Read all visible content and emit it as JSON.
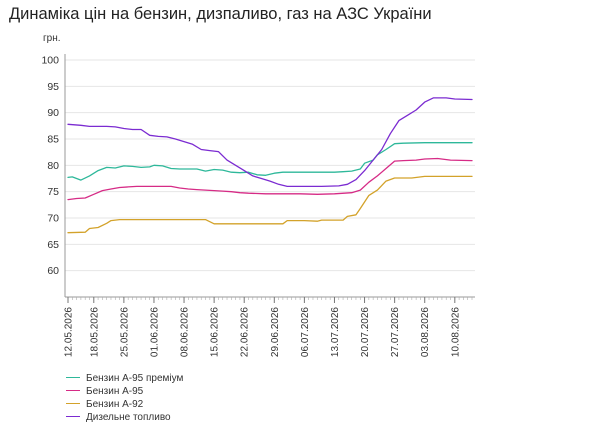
{
  "chart_data": {
    "type": "line",
    "title": "Динаміка цін на бензин, дизпаливо, газ на АЗС України",
    "ylabel": "грн.",
    "xlabel": "",
    "ylim": [
      55,
      100
    ],
    "yticks": [
      60,
      65,
      70,
      75,
      80,
      85,
      90,
      95,
      100
    ],
    "grid": "horizontal",
    "legend_position": "bottom-left",
    "x_tick_labels": [
      "12.05.2026",
      "18.05.2026",
      "25.05.2026",
      "01.06.2026",
      "08.06.2026",
      "15.06.2026",
      "22.06.2026",
      "29.06.2026",
      "06.07.2026",
      "13.07.2026",
      "20.07.2026",
      "27.07.2026",
      "03.08.2026",
      "10.08.2026"
    ],
    "x_range": [
      "12.05.2026",
      "14.08.2026"
    ],
    "series": [
      {
        "name": "Бензин А-95 преміум",
        "color": "#2eb89a",
        "points": [
          [
            "12.05.2026",
            77.7
          ],
          [
            "13.05.2026",
            77.8
          ],
          [
            "15.05.2026",
            77.2
          ],
          [
            "17.05.2026",
            78.0
          ],
          [
            "19.05.2026",
            79.0
          ],
          [
            "21.05.2026",
            79.6
          ],
          [
            "23.05.2026",
            79.5
          ],
          [
            "25.05.2026",
            79.9
          ],
          [
            "27.05.2026",
            79.8
          ],
          [
            "29.05.2026",
            79.6
          ],
          [
            "31.05.2026",
            79.7
          ],
          [
            "01.06.2026",
            80.0
          ],
          [
            "03.06.2026",
            79.9
          ],
          [
            "05.06.2026",
            79.4
          ],
          [
            "07.06.2026",
            79.3
          ],
          [
            "09.06.2026",
            79.3
          ],
          [
            "11.06.2026",
            79.3
          ],
          [
            "13.06.2026",
            78.9
          ],
          [
            "15.06.2026",
            79.2
          ],
          [
            "17.06.2026",
            79.1
          ],
          [
            "19.06.2026",
            78.7
          ],
          [
            "21.06.2026",
            78.6
          ],
          [
            "23.06.2026",
            78.7
          ],
          [
            "25.06.2026",
            78.2
          ],
          [
            "27.06.2026",
            78.1
          ],
          [
            "29.06.2026",
            78.5
          ],
          [
            "01.07.2026",
            78.7
          ],
          [
            "05.07.2026",
            78.7
          ],
          [
            "09.07.2026",
            78.7
          ],
          [
            "13.07.2026",
            78.7
          ],
          [
            "15.07.2026",
            78.8
          ],
          [
            "17.07.2026",
            78.9
          ],
          [
            "19.07.2026",
            79.3
          ],
          [
            "20.07.2026",
            80.4
          ],
          [
            "22.07.2026",
            81.0
          ],
          [
            "23.07.2026",
            82.0
          ],
          [
            "25.07.2026",
            83.0
          ],
          [
            "27.07.2026",
            84.1
          ],
          [
            "29.07.2026",
            84.2
          ],
          [
            "03.08.2026",
            84.3
          ],
          [
            "14.08.2026",
            84.3
          ]
        ]
      },
      {
        "name": "Бензин А-95",
        "color": "#d62b86",
        "points": [
          [
            "12.05.2026",
            73.5
          ],
          [
            "14.05.2026",
            73.7
          ],
          [
            "16.05.2026",
            73.8
          ],
          [
            "18.05.2026",
            74.5
          ],
          [
            "20.05.2026",
            75.2
          ],
          [
            "22.05.2026",
            75.5
          ],
          [
            "24.05.2026",
            75.8
          ],
          [
            "26.05.2026",
            75.9
          ],
          [
            "28.05.2026",
            76.0
          ],
          [
            "01.06.2026",
            76.0
          ],
          [
            "05.06.2026",
            76.0
          ],
          [
            "07.06.2026",
            75.7
          ],
          [
            "09.06.2026",
            75.5
          ],
          [
            "11.06.2026",
            75.4
          ],
          [
            "13.06.2026",
            75.3
          ],
          [
            "15.06.2026",
            75.2
          ],
          [
            "17.06.2026",
            75.1
          ],
          [
            "19.06.2026",
            75.0
          ],
          [
            "21.06.2026",
            74.8
          ],
          [
            "23.06.2026",
            74.7
          ],
          [
            "27.06.2026",
            74.6
          ],
          [
            "01.07.2026",
            74.6
          ],
          [
            "05.07.2026",
            74.6
          ],
          [
            "09.07.2026",
            74.5
          ],
          [
            "13.07.2026",
            74.6
          ],
          [
            "17.07.2026",
            74.8
          ],
          [
            "19.07.2026",
            75.3
          ],
          [
            "21.07.2026",
            76.8
          ],
          [
            "23.07.2026",
            78.0
          ],
          [
            "25.07.2026",
            79.4
          ],
          [
            "27.07.2026",
            80.8
          ],
          [
            "29.07.2026",
            80.9
          ],
          [
            "01.08.2026",
            81.0
          ],
          [
            "03.08.2026",
            81.2
          ],
          [
            "06.08.2026",
            81.3
          ],
          [
            "09.08.2026",
            81.0
          ],
          [
            "14.08.2026",
            80.9
          ]
        ]
      },
      {
        "name": "Бензин А-92",
        "color": "#d3a22a",
        "points": [
          [
            "12.05.2026",
            67.2
          ],
          [
            "16.05.2026",
            67.3
          ],
          [
            "17.05.2026",
            68.0
          ],
          [
            "19.05.2026",
            68.2
          ],
          [
            "21.05.2026",
            69.0
          ],
          [
            "22.05.2026",
            69.5
          ],
          [
            "24.05.2026",
            69.7
          ],
          [
            "01.06.2026",
            69.7
          ],
          [
            "08.06.2026",
            69.7
          ],
          [
            "13.06.2026",
            69.7
          ],
          [
            "14.06.2026",
            69.3
          ],
          [
            "15.06.2026",
            68.9
          ],
          [
            "22.06.2026",
            68.9
          ],
          [
            "27.06.2026",
            68.9
          ],
          [
            "01.07.2026",
            68.9
          ],
          [
            "02.07.2026",
            69.5
          ],
          [
            "06.07.2026",
            69.5
          ],
          [
            "09.07.2026",
            69.4
          ],
          [
            "10.07.2026",
            69.6
          ],
          [
            "15.07.2026",
            69.6
          ],
          [
            "16.07.2026",
            70.3
          ],
          [
            "18.07.2026",
            70.6
          ],
          [
            "19.07.2026",
            71.8
          ],
          [
            "21.07.2026",
            74.3
          ],
          [
            "23.07.2026",
            75.3
          ],
          [
            "25.07.2026",
            77.0
          ],
          [
            "27.07.2026",
            77.6
          ],
          [
            "31.07.2026",
            77.6
          ],
          [
            "03.08.2026",
            77.9
          ],
          [
            "07.08.2026",
            77.9
          ],
          [
            "14.08.2026",
            77.9
          ]
        ]
      },
      {
        "name": "Дизельне топливо",
        "color": "#7b2bd1",
        "points": [
          [
            "12.05.2026",
            87.8
          ],
          [
            "15.05.2026",
            87.6
          ],
          [
            "17.05.2026",
            87.4
          ],
          [
            "21.05.2026",
            87.4
          ],
          [
            "23.05.2026",
            87.3
          ],
          [
            "25.05.2026",
            87.0
          ],
          [
            "27.05.2026",
            86.8
          ],
          [
            "29.05.2026",
            86.8
          ],
          [
            "31.05.2026",
            85.7
          ],
          [
            "02.06.2026",
            85.5
          ],
          [
            "04.06.2026",
            85.4
          ],
          [
            "06.06.2026",
            85.0
          ],
          [
            "08.06.2026",
            84.5
          ],
          [
            "10.06.2026",
            84.0
          ],
          [
            "12.06.2026",
            83.0
          ],
          [
            "14.06.2026",
            82.8
          ],
          [
            "16.06.2026",
            82.6
          ],
          [
            "18.06.2026",
            81.0
          ],
          [
            "20.06.2026",
            80.0
          ],
          [
            "22.06.2026",
            79.0
          ],
          [
            "24.06.2026",
            78.0
          ],
          [
            "26.06.2026",
            77.5
          ],
          [
            "28.06.2026",
            77.0
          ],
          [
            "30.06.2026",
            76.4
          ],
          [
            "02.07.2026",
            76.0
          ],
          [
            "06.07.2026",
            76.0
          ],
          [
            "10.07.2026",
            76.0
          ],
          [
            "14.07.2026",
            76.1
          ],
          [
            "16.07.2026",
            76.4
          ],
          [
            "18.07.2026",
            77.3
          ],
          [
            "20.07.2026",
            79.0
          ],
          [
            "22.07.2026",
            81.0
          ],
          [
            "24.07.2026",
            83.0
          ],
          [
            "26.07.2026",
            86.0
          ],
          [
            "28.07.2026",
            88.5
          ],
          [
            "30.07.2026",
            89.5
          ],
          [
            "01.08.2026",
            90.5
          ],
          [
            "03.08.2026",
            92.0
          ],
          [
            "05.08.2026",
            92.8
          ],
          [
            "08.08.2026",
            92.8
          ],
          [
            "10.08.2026",
            92.6
          ],
          [
            "14.08.2026",
            92.5
          ]
        ]
      }
    ]
  }
}
